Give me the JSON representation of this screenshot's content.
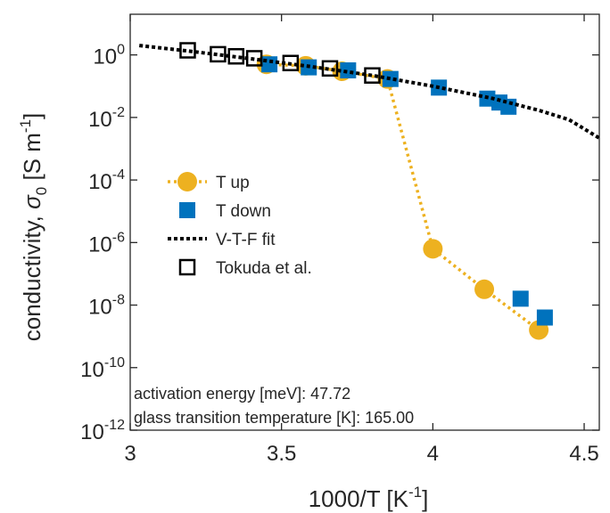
{
  "chart_data": {
    "type": "scatter",
    "xlabel": "1000/T [K",
    "xlabel_sup": "-1",
    "xlabel_end": "]",
    "ylabel_main": "conductivity, ",
    "ylabel_sym": "σ",
    "ylabel_sub": "0",
    "ylabel_units": " [S m",
    "ylabel_sup": "-1",
    "ylabel_end": "]",
    "xlim": [
      3.0,
      4.55
    ],
    "ylim_log10": [
      -12,
      1.3
    ],
    "y_scale": "log",
    "x_ticks": [
      {
        "value": 3.0,
        "label": "3"
      },
      {
        "value": 3.5,
        "label": "3.5"
      },
      {
        "value": 4.0,
        "label": "4"
      },
      {
        "value": 4.5,
        "label": "4.5"
      }
    ],
    "y_ticks": [
      {
        "exp": 0,
        "base": "10",
        "sup": "0"
      },
      {
        "exp": -2,
        "base": "10",
        "sup": "-2"
      },
      {
        "exp": -4,
        "base": "10",
        "sup": "-4"
      },
      {
        "exp": -6,
        "base": "10",
        "sup": "-6"
      },
      {
        "exp": -8,
        "base": "10",
        "sup": "-8"
      },
      {
        "exp": -10,
        "base": "10",
        "sup": "-10"
      },
      {
        "exp": -12,
        "base": "10",
        "sup": "-12"
      }
    ],
    "legend_position": "center-left",
    "series": [
      {
        "name": "T up",
        "marker": "circle",
        "line": "dotted",
        "color": "#EDB120",
        "points": [
          {
            "x": 3.45,
            "y": 0.5
          },
          {
            "x": 3.58,
            "y": 0.45
          },
          {
            "x": 3.7,
            "y": 0.3
          },
          {
            "x": 3.85,
            "y": 0.17
          },
          {
            "x": 4.0,
            "y": 6.3e-07
          },
          {
            "x": 4.17,
            "y": 3.2e-08
          },
          {
            "x": 4.35,
            "y": 1.6e-09
          }
        ]
      },
      {
        "name": "T down",
        "marker": "square",
        "line": "none",
        "color": "#0072BD",
        "points": [
          {
            "x": 3.46,
            "y": 0.5
          },
          {
            "x": 3.59,
            "y": 0.4
          },
          {
            "x": 3.72,
            "y": 0.32
          },
          {
            "x": 3.86,
            "y": 0.17
          },
          {
            "x": 4.02,
            "y": 0.09
          },
          {
            "x": 4.18,
            "y": 0.04
          },
          {
            "x": 4.22,
            "y": 0.03
          },
          {
            "x": 4.25,
            "y": 0.022
          },
          {
            "x": 4.29,
            "y": 1.6e-08
          },
          {
            "x": 4.37,
            "y": 4e-09
          }
        ]
      },
      {
        "name": "V-T-F fit",
        "marker": "none",
        "line": "dotted",
        "color": "#000000",
        "points": [
          {
            "x": 3.03,
            "y": 2.0
          },
          {
            "x": 3.2,
            "y": 1.3
          },
          {
            "x": 3.4,
            "y": 0.75
          },
          {
            "x": 3.6,
            "y": 0.42
          },
          {
            "x": 3.8,
            "y": 0.22
          },
          {
            "x": 4.0,
            "y": 0.1
          },
          {
            "x": 4.2,
            "y": 0.04
          },
          {
            "x": 4.35,
            "y": 0.017
          },
          {
            "x": 4.45,
            "y": 0.0085
          },
          {
            "x": 4.55,
            "y": 0.0022
          }
        ]
      },
      {
        "name": "Tokuda et al.",
        "marker": "open-square",
        "line": "none",
        "color": "#000000",
        "points": [
          {
            "x": 3.19,
            "y": 1.4
          },
          {
            "x": 3.29,
            "y": 1.05
          },
          {
            "x": 3.35,
            "y": 0.9
          },
          {
            "x": 3.41,
            "y": 0.78
          },
          {
            "x": 3.53,
            "y": 0.55
          },
          {
            "x": 3.66,
            "y": 0.37
          },
          {
            "x": 3.8,
            "y": 0.22
          }
        ]
      }
    ],
    "annotations": [
      "activation energy [meV]: 47.72",
      "glass transition temperature [K]: 165.00"
    ]
  }
}
